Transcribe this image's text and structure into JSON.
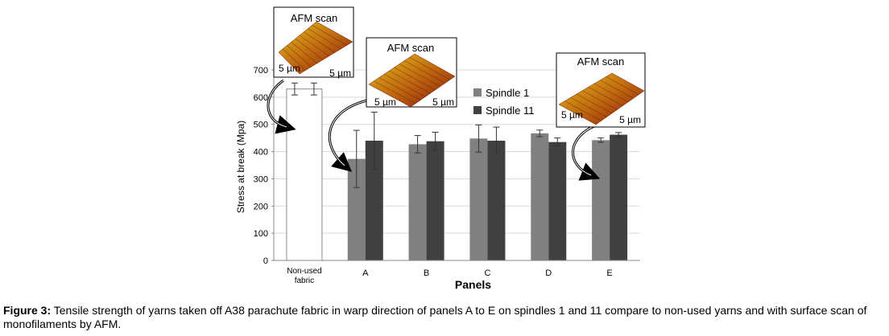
{
  "chart_data": {
    "type": "bar",
    "ylabel": "Stress at break (Mpa)",
    "xlabel": "Panels",
    "ylim": [
      0,
      700
    ],
    "yticks": [
      0,
      100,
      200,
      300,
      400,
      500,
      600,
      700
    ],
    "grid": true,
    "legend_position": "right",
    "reference": {
      "category": "Non-used fabric",
      "value": 630,
      "error": 22,
      "color": "#ffffff"
    },
    "categories": [
      "A",
      "B",
      "C",
      "D",
      "E"
    ],
    "series": [
      {
        "name": "Spindle 1",
        "color": "#808080",
        "values": [
          373,
          427,
          448,
          467,
          442
        ],
        "errors": [
          105,
          32,
          50,
          12,
          8
        ]
      },
      {
        "name": "Spindle 11",
        "color": "#404040",
        "values": [
          440,
          438,
          440,
          435,
          462
        ],
        "errors": [
          105,
          33,
          50,
          15,
          8
        ]
      }
    ]
  },
  "afm_insets": {
    "title": "AFM scan",
    "scale_label": "5 µm",
    "palette": [
      "#e6c21a",
      "#c06a10",
      "#8a1a0a"
    ]
  },
  "caption": {
    "label": "Figure 3:",
    "text": " Tensile strength of yarns taken off A38 parachute fabric in warp direction of panels A to E on spindles 1 and 11 compare to non-used yarns and with surface scan of monofilaments by AFM."
  }
}
